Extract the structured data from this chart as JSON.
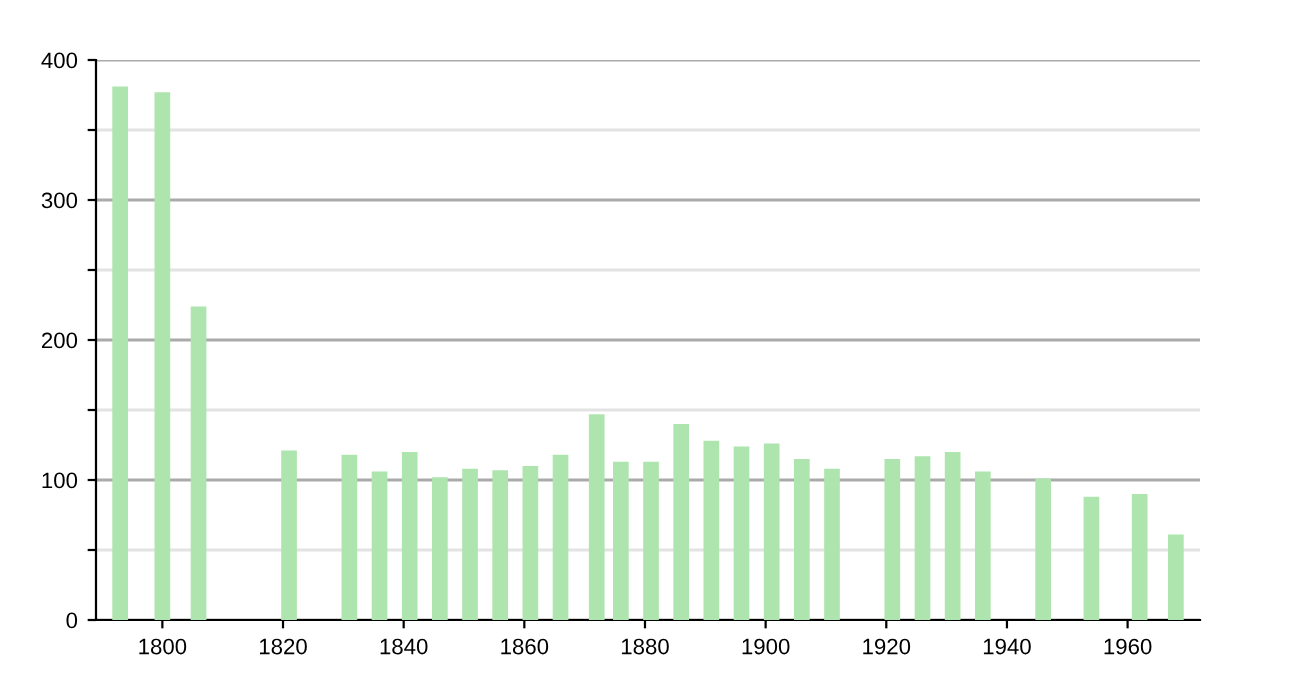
{
  "chart_data": {
    "type": "bar",
    "x": [
      1793,
      1800,
      1806,
      1821,
      1831,
      1836,
      1841,
      1846,
      1851,
      1856,
      1861,
      1866,
      1872,
      1876,
      1881,
      1886,
      1891,
      1896,
      1901,
      1906,
      1911,
      1921,
      1926,
      1931,
      1936,
      1946,
      1954,
      1962,
      1968
    ],
    "values": [
      381,
      377,
      224,
      121,
      118,
      106,
      120,
      102,
      108,
      107,
      110,
      118,
      147,
      113,
      113,
      140,
      128,
      124,
      126,
      115,
      108,
      115,
      117,
      120,
      106,
      101,
      88,
      90,
      61
    ],
    "color": "#aee5ae",
    "xlim": [
      1789,
      1972
    ],
    "xticks": [
      1800,
      1820,
      1840,
      1860,
      1880,
      1900,
      1920,
      1940,
      1960
    ],
    "ylim": [
      0,
      400
    ],
    "yticks": [
      0,
      {
        "value": 50,
        "label": null
      },
      100,
      {
        "value": 150,
        "label": null
      },
      200,
      {
        "value": 250,
        "label": null
      },
      300,
      {
        "value": 350,
        "label": null
      },
      400
    ],
    "grid": "y"
  }
}
